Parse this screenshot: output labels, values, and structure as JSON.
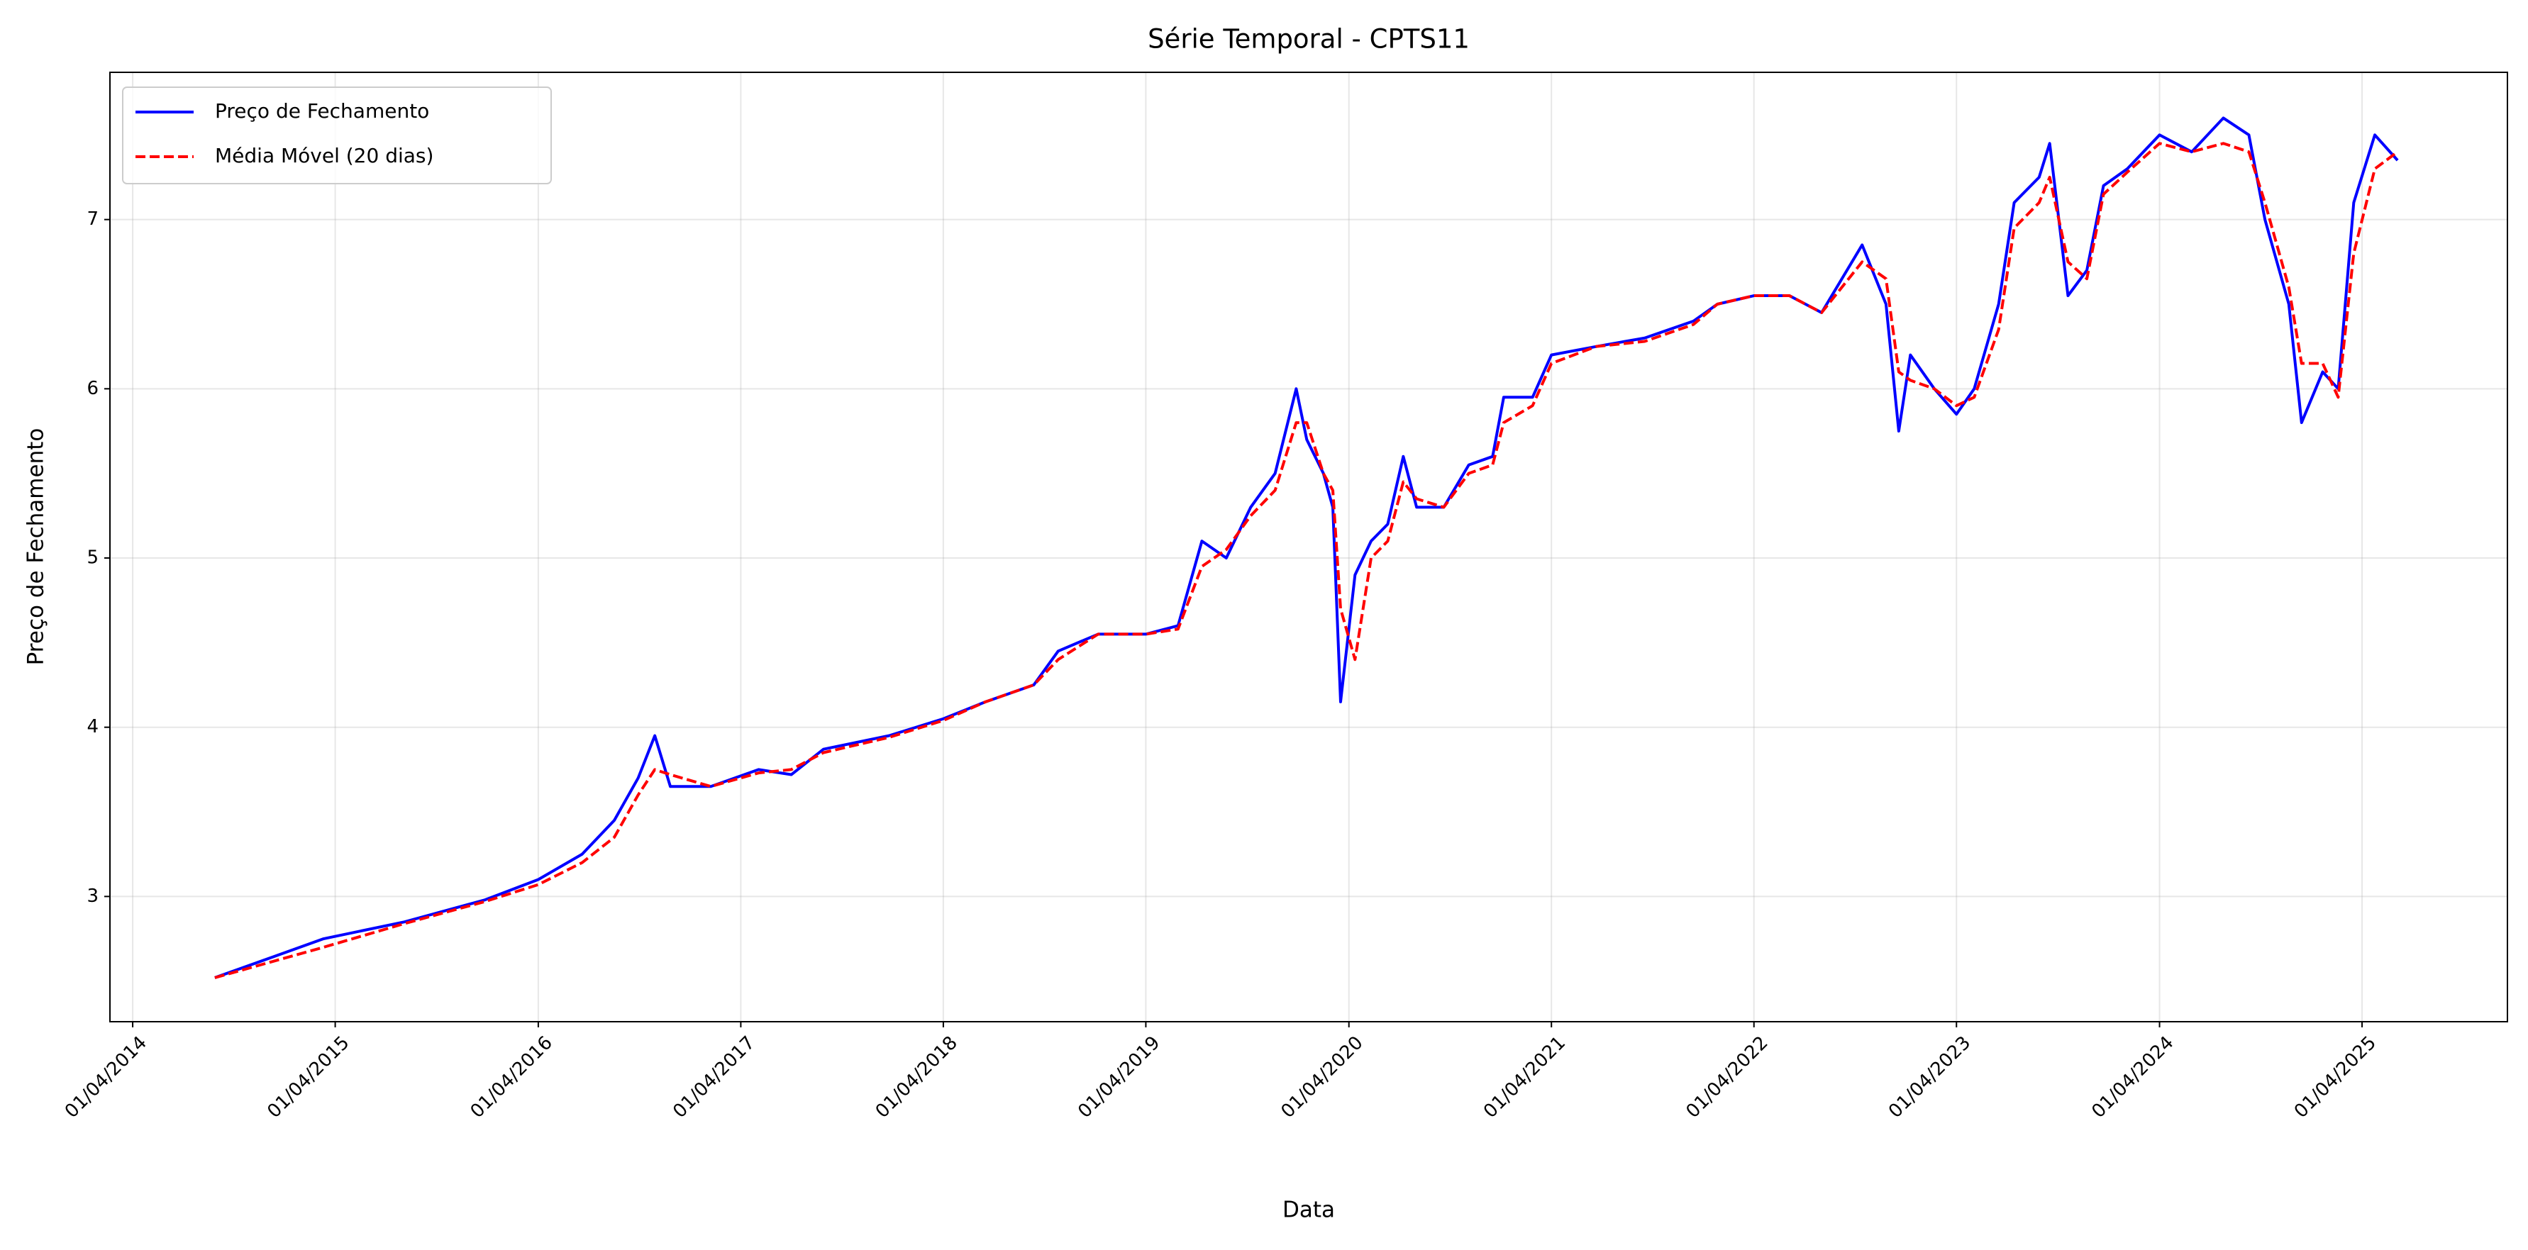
{
  "chart_data": {
    "type": "line",
    "title": "Série Temporal - CPTS11",
    "xlabel": "Data",
    "ylabel": "Preço de Fechamento",
    "x": [
      "2014-08-27",
      "2015-03-11",
      "2015-08-04",
      "2015-12-27",
      "2016-04-01",
      "2016-06-19",
      "2016-08-16",
      "2016-09-28",
      "2016-10-28",
      "2016-11-25",
      "2017-02-06",
      "2017-05-03",
      "2017-07-01",
      "2017-08-28",
      "2017-12-24",
      "2018-04-01",
      "2018-06-16",
      "2018-09-11",
      "2018-10-25",
      "2019-01-05",
      "2019-04-01",
      "2019-05-29",
      "2019-07-11",
      "2019-08-24",
      "2019-10-07",
      "2019-11-20",
      "2019-12-28",
      "2020-01-16",
      "2020-02-15",
      "2020-03-03",
      "2020-03-17",
      "2020-04-12",
      "2020-05-11",
      "2020-06-10",
      "2020-07-08",
      "2020-08-01",
      "2020-09-19",
      "2020-11-03",
      "2020-12-16",
      "2021-01-05",
      "2021-02-26",
      "2021-04-01",
      "2021-06-21",
      "2021-09-16",
      "2021-12-13",
      "2022-01-25",
      "2022-04-01",
      "2022-06-04",
      "2022-08-01",
      "2022-10-13",
      "2022-11-25",
      "2022-12-18",
      "2023-01-08",
      "2023-02-20",
      "2023-04-01",
      "2023-05-03",
      "2023-06-16",
      "2023-07-14",
      "2023-08-28",
      "2023-09-16",
      "2023-10-19",
      "2023-11-22",
      "2023-12-22",
      "2024-02-03",
      "2024-04-01",
      "2024-05-29",
      "2024-07-25",
      "2024-09-09",
      "2024-10-08",
      "2024-11-20",
      "2024-12-13",
      "2025-01-20",
      "2025-02-17",
      "2025-03-17",
      "2025-04-24",
      "2025-06-04"
    ],
    "series": [
      {
        "name": "Preço de Fechamento",
        "color": "#0000ff",
        "dash": "solid",
        "values": [
          2.52,
          2.75,
          2.85,
          2.98,
          3.1,
          3.25,
          3.45,
          3.7,
          3.95,
          3.65,
          3.65,
          3.75,
          3.72,
          3.87,
          3.95,
          4.05,
          4.15,
          4.25,
          4.45,
          4.55,
          4.55,
          4.6,
          5.1,
          5.0,
          5.3,
          5.5,
          6.0,
          5.7,
          5.5,
          5.3,
          4.15,
          4.9,
          5.1,
          5.2,
          5.6,
          5.3,
          5.3,
          5.55,
          5.6,
          5.95,
          5.95,
          6.2,
          6.25,
          6.3,
          6.4,
          6.5,
          6.55,
          6.55,
          6.45,
          6.85,
          6.5,
          5.75,
          6.2,
          6.0,
          5.85,
          6.0,
          6.5,
          7.1,
          7.25,
          7.45,
          6.55,
          6.7,
          7.2,
          7.3,
          7.5,
          7.4,
          7.6,
          7.5,
          7.0,
          6.5,
          5.8,
          6.1,
          6.0,
          7.1,
          7.5,
          7.35
        ]
      },
      {
        "name": "Média Móvel (20 dias)",
        "color": "#ff0000",
        "dash": "dashed",
        "values": [
          2.52,
          2.7,
          2.84,
          2.97,
          3.07,
          3.2,
          3.35,
          3.6,
          3.75,
          3.72,
          3.65,
          3.73,
          3.75,
          3.85,
          3.94,
          4.04,
          4.15,
          4.25,
          4.4,
          4.55,
          4.55,
          4.58,
          4.95,
          5.05,
          5.25,
          5.4,
          5.8,
          5.8,
          5.5,
          5.4,
          4.7,
          4.4,
          5.0,
          5.1,
          5.45,
          5.35,
          5.3,
          5.5,
          5.55,
          5.8,
          5.9,
          6.15,
          6.25,
          6.28,
          6.38,
          6.5,
          6.55,
          6.55,
          6.45,
          6.75,
          6.65,
          6.1,
          6.05,
          6.0,
          5.9,
          5.95,
          6.35,
          6.95,
          7.1,
          7.25,
          6.75,
          6.65,
          7.15,
          7.28,
          7.45,
          7.4,
          7.45,
          7.4,
          7.1,
          6.6,
          6.15,
          6.15,
          5.95,
          6.8,
          7.3,
          7.4
        ]
      }
    ],
    "xlim": [
      "2014-02-19",
      "2025-12-19"
    ],
    "xticks": [
      {
        "value": "2014-04-01",
        "label": "01/04/2014"
      },
      {
        "value": "2015-04-01",
        "label": "01/04/2015"
      },
      {
        "value": "2016-04-01",
        "label": "01/04/2016"
      },
      {
        "value": "2017-04-01",
        "label": "01/04/2017"
      },
      {
        "value": "2018-04-01",
        "label": "01/04/2018"
      },
      {
        "value": "2019-04-01",
        "label": "01/04/2019"
      },
      {
        "value": "2020-04-01",
        "label": "01/04/2020"
      },
      {
        "value": "2021-04-01",
        "label": "01/04/2021"
      },
      {
        "value": "2022-04-01",
        "label": "01/04/2022"
      },
      {
        "value": "2023-04-01",
        "label": "01/04/2023"
      },
      {
        "value": "2024-04-01",
        "label": "01/04/2024"
      },
      {
        "value": "2025-04-01",
        "label": "01/04/2025"
      }
    ],
    "ylim": [
      2.26,
      7.87
    ],
    "yticks": [
      3,
      4,
      5,
      6,
      7
    ],
    "grid": true,
    "legend": "upper left"
  }
}
